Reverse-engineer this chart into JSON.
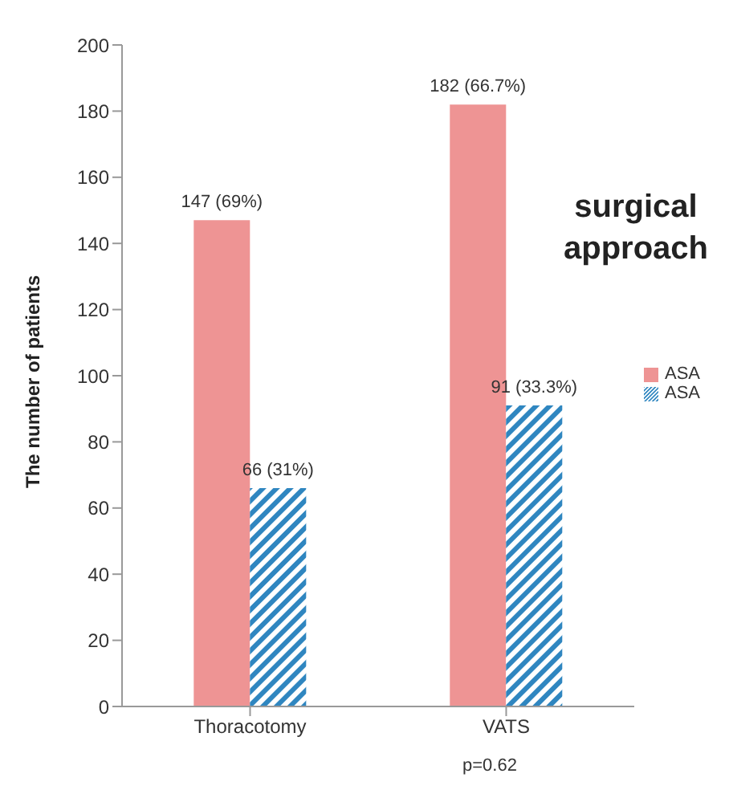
{
  "chart_data": {
    "type": "bar",
    "title": "surgical approach",
    "ylabel": "The number of patients",
    "categories": [
      "Thoracotomy",
      "VATS"
    ],
    "series": [
      {
        "name": "ASA",
        "color": "#ee9494",
        "values": [
          147,
          182
        ],
        "value_labels": [
          "147 (69%)",
          "182 (66.7%)"
        ]
      },
      {
        "name": "ASA",
        "color": "#2f86c0",
        "values": [
          66,
          91
        ],
        "value_labels": [
          "66 (31%)",
          "91 (33.3%)"
        ]
      }
    ],
    "ylim": [
      0,
      200
    ],
    "yticks": [
      0,
      20,
      40,
      60,
      80,
      100,
      120,
      140,
      160,
      180,
      200
    ],
    "legend": "right",
    "annotations": [
      "p=0.62"
    ]
  }
}
